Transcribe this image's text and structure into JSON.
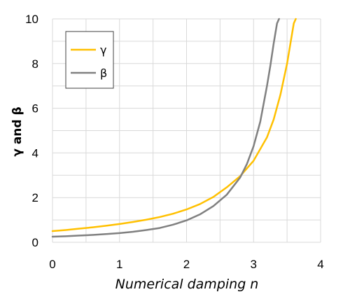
{
  "chart_data": {
    "type": "line",
    "title": "",
    "xlabel": "Numerical damping n",
    "ylabel": "γ and β",
    "xlim": [
      0,
      4
    ],
    "ylim": [
      0,
      10
    ],
    "x_ticks": [
      "0",
      "1",
      "2",
      "3",
      "4"
    ],
    "y_ticks": [
      "0",
      "2",
      "4",
      "6",
      "8",
      "10"
    ],
    "grid": true,
    "legend_position": "top-left",
    "series": [
      {
        "name": "γ",
        "color": "#FFC000",
        "x": [
          0,
          0.2,
          0.4,
          0.6,
          0.8,
          1.0,
          1.2,
          1.4,
          1.6,
          1.8,
          2.0,
          2.2,
          2.4,
          2.6,
          2.8,
          3.0,
          3.2,
          3.3,
          3.4,
          3.5,
          3.55,
          3.6,
          3.63
        ],
        "values": [
          0.5,
          0.55,
          0.61,
          0.67,
          0.74,
          0.82,
          0.91,
          1.01,
          1.13,
          1.28,
          1.47,
          1.71,
          2.03,
          2.46,
          2.96,
          3.65,
          4.7,
          5.5,
          6.6,
          8.0,
          8.9,
          9.8,
          10.0
        ]
      },
      {
        "name": "β",
        "color": "#808080",
        "x": [
          0,
          0.2,
          0.4,
          0.6,
          0.8,
          1.0,
          1.2,
          1.4,
          1.6,
          1.8,
          2.0,
          2.2,
          2.4,
          2.6,
          2.8,
          2.9,
          3.0,
          3.1,
          3.2,
          3.25,
          3.3,
          3.35,
          3.38
        ],
        "values": [
          0.25,
          0.27,
          0.3,
          0.33,
          0.37,
          0.41,
          0.47,
          0.55,
          0.64,
          0.79,
          0.98,
          1.25,
          1.62,
          2.13,
          2.9,
          3.5,
          4.3,
          5.4,
          7.0,
          7.9,
          8.9,
          9.8,
          10.0
        ]
      }
    ]
  }
}
